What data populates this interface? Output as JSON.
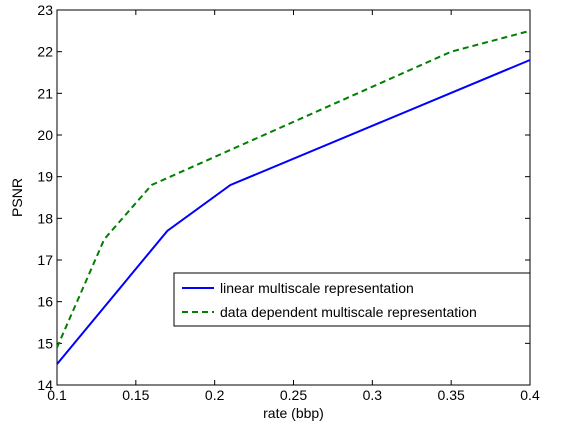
{
  "chart_data": {
    "type": "line",
    "title": "",
    "xlabel": "rate (bbp)",
    "ylabel": "PSNR",
    "xlim": [
      0.1,
      0.4
    ],
    "ylim": [
      14,
      23
    ],
    "xticks": [
      0.1,
      0.15,
      0.2,
      0.25,
      0.3,
      0.35,
      0.4
    ],
    "xtick_labels": [
      "0.1",
      "0.15",
      "0.2",
      "0.25",
      "0.3",
      "0.35",
      "0.4"
    ],
    "yticks": [
      14,
      15,
      16,
      17,
      18,
      19,
      20,
      21,
      22,
      23
    ],
    "ytick_labels": [
      "14",
      "15",
      "16",
      "17",
      "18",
      "19",
      "20",
      "21",
      "22",
      "23"
    ],
    "grid": false,
    "legend_position": "lower-right",
    "series": [
      {
        "name": "linear multiscale representation",
        "color": "#0000ff",
        "style": "solid",
        "x": [
          0.1,
          0.17,
          0.21,
          0.4
        ],
        "y": [
          14.5,
          17.7,
          18.8,
          21.8
        ]
      },
      {
        "name": "data dependent multiscale representation",
        "color": "#007f00",
        "style": "dashed",
        "x": [
          0.1,
          0.13,
          0.16,
          0.35,
          0.4
        ],
        "y": [
          14.9,
          17.5,
          18.8,
          22.0,
          22.5
        ]
      }
    ]
  }
}
